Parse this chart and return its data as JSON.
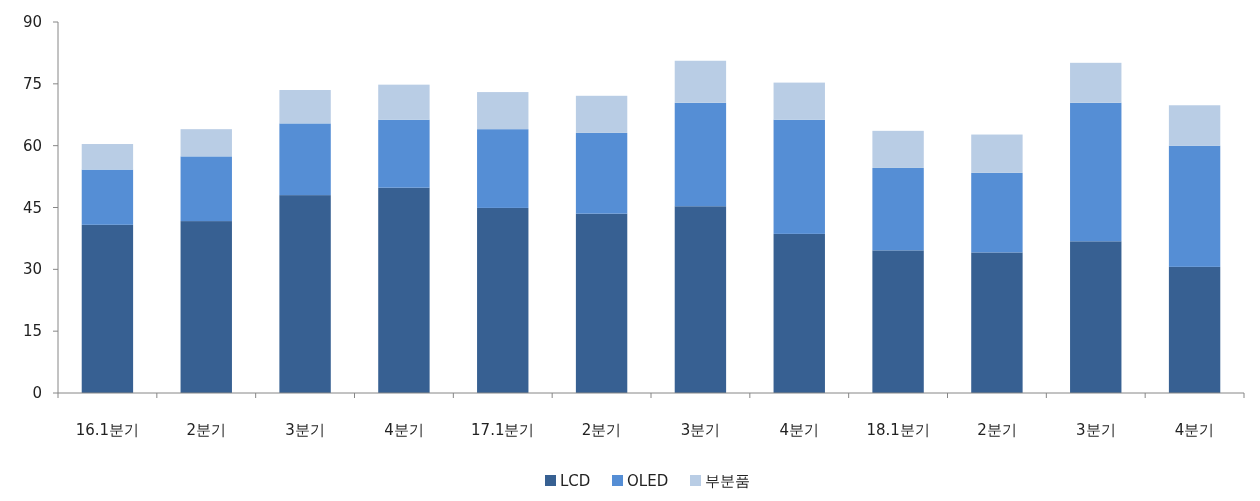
{
  "chart_data": {
    "type": "bar",
    "stacked": true,
    "categories": [
      "16.1분기",
      "2분기",
      "3분기",
      "4분기",
      "17.1분기",
      "2분기",
      "3분기",
      "4분기",
      "18.1분기",
      "2분기",
      "3분기",
      "4분기"
    ],
    "series": [
      {
        "name": "LCD",
        "color": "#376092",
        "values": [
          40.8,
          41.7,
          48.0,
          49.8,
          44.9,
          43.5,
          45.3,
          38.6,
          34.6,
          34.1,
          36.8,
          30.6
        ]
      },
      {
        "name": "OLED",
        "color": "#558ed5",
        "values": [
          13.4,
          15.7,
          17.4,
          16.5,
          19.1,
          19.6,
          25.1,
          27.7,
          20.0,
          19.3,
          33.6,
          29.4
        ]
      },
      {
        "name": "부분품",
        "color": "#b9cde5",
        "values": [
          6.2,
          6.6,
          8.1,
          8.5,
          9.0,
          9.0,
          10.2,
          9.0,
          9.0,
          9.3,
          9.7,
          9.8
        ]
      }
    ],
    "ylim": [
      0,
      90
    ],
    "yticks": [
      0,
      15,
      30,
      45,
      60,
      75,
      90
    ],
    "grid": false,
    "legend": "bottom"
  }
}
